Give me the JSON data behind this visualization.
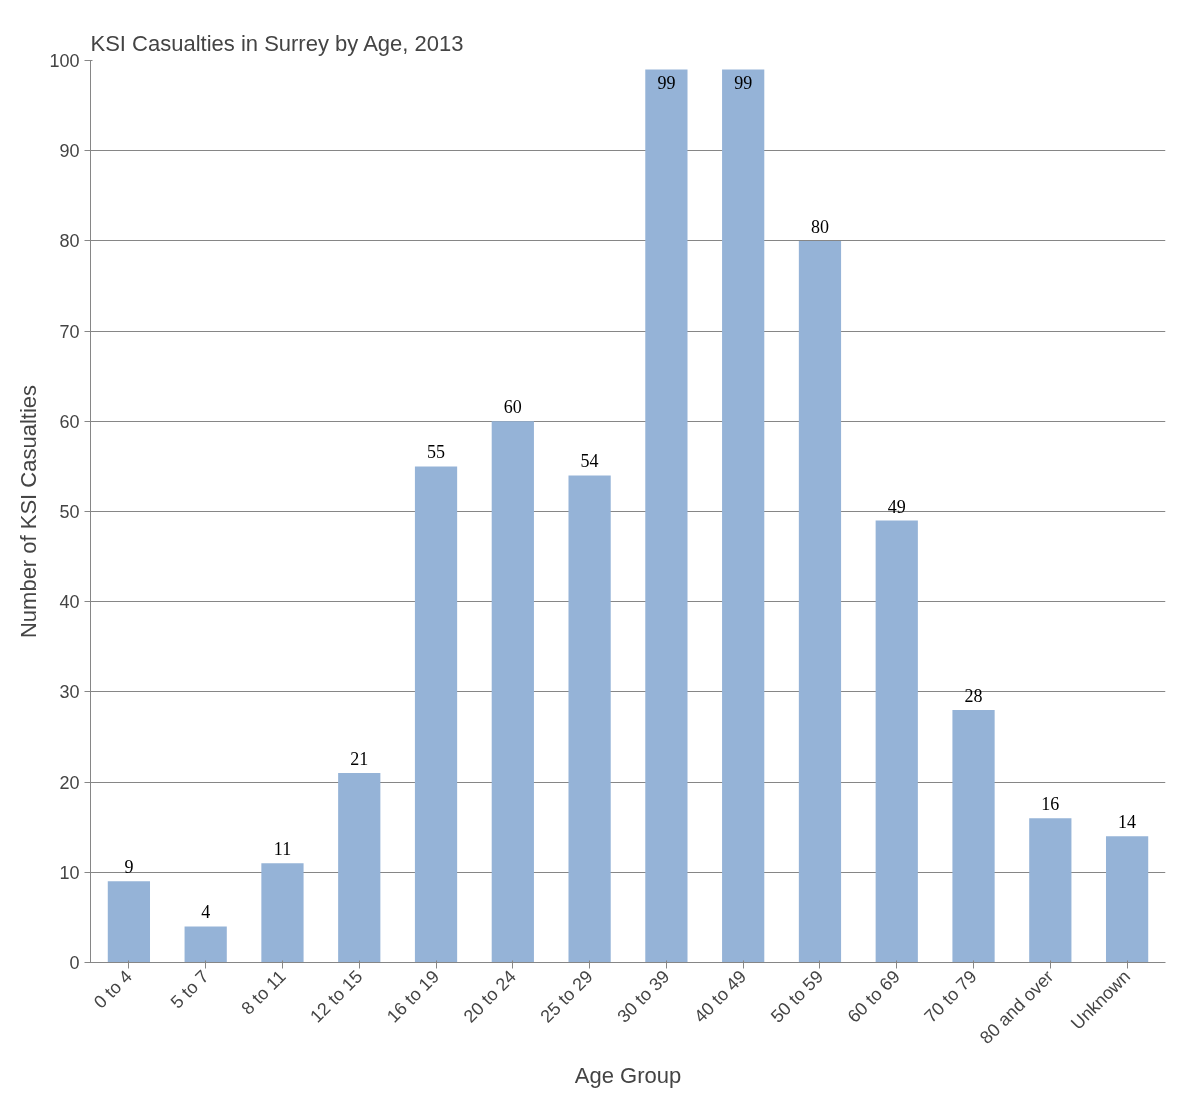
{
  "chart_data": {
    "type": "bar",
    "title": "KSI Casualties in Surrey by Age, 2013",
    "xlabel": "Age Group",
    "ylabel": "Number of KSI Casualties",
    "categories": [
      "0 to 4",
      "5 to 7",
      "8 to 11",
      "12 to 15",
      "16 to 19",
      "20 to 24",
      "25 to 29",
      "30 to 39",
      "40 to 49",
      "50 to 59",
      "60 to 69",
      "70 to 79",
      "80 and over",
      "Unknown"
    ],
    "values": [
      9,
      4,
      11,
      21,
      55,
      60,
      54,
      99,
      99,
      80,
      49,
      28,
      16,
      14
    ],
    "color": "#95b3d7",
    "ylim": [
      0,
      100
    ],
    "yticks": [
      0,
      10,
      20,
      30,
      40,
      50,
      60,
      70,
      80,
      90,
      100
    ],
    "grid": "y",
    "data_labels": true
  }
}
